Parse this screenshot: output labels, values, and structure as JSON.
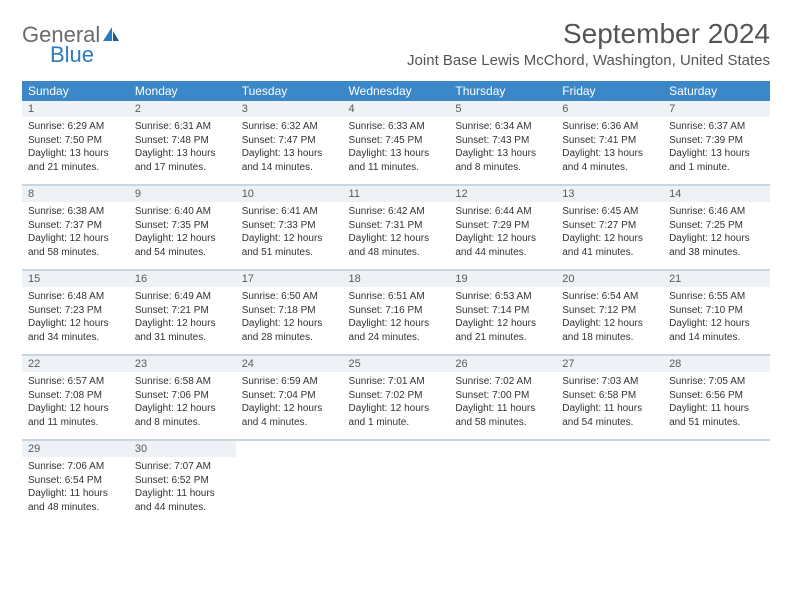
{
  "brand": {
    "general": "General",
    "blue": "Blue"
  },
  "title": "September 2024",
  "location": "Joint Base Lewis McChord, Washington, United States",
  "colors": {
    "header_bg": "#3b87c8",
    "header_fg": "#ffffff",
    "daynum_bg": "#eef2f6",
    "border": "#c9d6e2",
    "text": "#333333",
    "title_text": "#555555",
    "logo_gray": "#6b6b6b",
    "logo_blue": "#2b7bbf"
  },
  "weekdays": [
    "Sunday",
    "Monday",
    "Tuesday",
    "Wednesday",
    "Thursday",
    "Friday",
    "Saturday"
  ],
  "weeks": [
    [
      {
        "n": "1",
        "sr": "6:29 AM",
        "ss": "7:50 PM",
        "dl": "13 hours and 21 minutes."
      },
      {
        "n": "2",
        "sr": "6:31 AM",
        "ss": "7:48 PM",
        "dl": "13 hours and 17 minutes."
      },
      {
        "n": "3",
        "sr": "6:32 AM",
        "ss": "7:47 PM",
        "dl": "13 hours and 14 minutes."
      },
      {
        "n": "4",
        "sr": "6:33 AM",
        "ss": "7:45 PM",
        "dl": "13 hours and 11 minutes."
      },
      {
        "n": "5",
        "sr": "6:34 AM",
        "ss": "7:43 PM",
        "dl": "13 hours and 8 minutes."
      },
      {
        "n": "6",
        "sr": "6:36 AM",
        "ss": "7:41 PM",
        "dl": "13 hours and 4 minutes."
      },
      {
        "n": "7",
        "sr": "6:37 AM",
        "ss": "7:39 PM",
        "dl": "13 hours and 1 minute."
      }
    ],
    [
      {
        "n": "8",
        "sr": "6:38 AM",
        "ss": "7:37 PM",
        "dl": "12 hours and 58 minutes."
      },
      {
        "n": "9",
        "sr": "6:40 AM",
        "ss": "7:35 PM",
        "dl": "12 hours and 54 minutes."
      },
      {
        "n": "10",
        "sr": "6:41 AM",
        "ss": "7:33 PM",
        "dl": "12 hours and 51 minutes."
      },
      {
        "n": "11",
        "sr": "6:42 AM",
        "ss": "7:31 PM",
        "dl": "12 hours and 48 minutes."
      },
      {
        "n": "12",
        "sr": "6:44 AM",
        "ss": "7:29 PM",
        "dl": "12 hours and 44 minutes."
      },
      {
        "n": "13",
        "sr": "6:45 AM",
        "ss": "7:27 PM",
        "dl": "12 hours and 41 minutes."
      },
      {
        "n": "14",
        "sr": "6:46 AM",
        "ss": "7:25 PM",
        "dl": "12 hours and 38 minutes."
      }
    ],
    [
      {
        "n": "15",
        "sr": "6:48 AM",
        "ss": "7:23 PM",
        "dl": "12 hours and 34 minutes."
      },
      {
        "n": "16",
        "sr": "6:49 AM",
        "ss": "7:21 PM",
        "dl": "12 hours and 31 minutes."
      },
      {
        "n": "17",
        "sr": "6:50 AM",
        "ss": "7:18 PM",
        "dl": "12 hours and 28 minutes."
      },
      {
        "n": "18",
        "sr": "6:51 AM",
        "ss": "7:16 PM",
        "dl": "12 hours and 24 minutes."
      },
      {
        "n": "19",
        "sr": "6:53 AM",
        "ss": "7:14 PM",
        "dl": "12 hours and 21 minutes."
      },
      {
        "n": "20",
        "sr": "6:54 AM",
        "ss": "7:12 PM",
        "dl": "12 hours and 18 minutes."
      },
      {
        "n": "21",
        "sr": "6:55 AM",
        "ss": "7:10 PM",
        "dl": "12 hours and 14 minutes."
      }
    ],
    [
      {
        "n": "22",
        "sr": "6:57 AM",
        "ss": "7:08 PM",
        "dl": "12 hours and 11 minutes."
      },
      {
        "n": "23",
        "sr": "6:58 AM",
        "ss": "7:06 PM",
        "dl": "12 hours and 8 minutes."
      },
      {
        "n": "24",
        "sr": "6:59 AM",
        "ss": "7:04 PM",
        "dl": "12 hours and 4 minutes."
      },
      {
        "n": "25",
        "sr": "7:01 AM",
        "ss": "7:02 PM",
        "dl": "12 hours and 1 minute."
      },
      {
        "n": "26",
        "sr": "7:02 AM",
        "ss": "7:00 PM",
        "dl": "11 hours and 58 minutes."
      },
      {
        "n": "27",
        "sr": "7:03 AM",
        "ss": "6:58 PM",
        "dl": "11 hours and 54 minutes."
      },
      {
        "n": "28",
        "sr": "7:05 AM",
        "ss": "6:56 PM",
        "dl": "11 hours and 51 minutes."
      }
    ],
    [
      {
        "n": "29",
        "sr": "7:06 AM",
        "ss": "6:54 PM",
        "dl": "11 hours and 48 minutes."
      },
      {
        "n": "30",
        "sr": "7:07 AM",
        "ss": "6:52 PM",
        "dl": "11 hours and 44 minutes."
      },
      null,
      null,
      null,
      null,
      null
    ]
  ],
  "labels": {
    "sunrise": "Sunrise: ",
    "sunset": "Sunset: ",
    "daylight": "Daylight: "
  }
}
